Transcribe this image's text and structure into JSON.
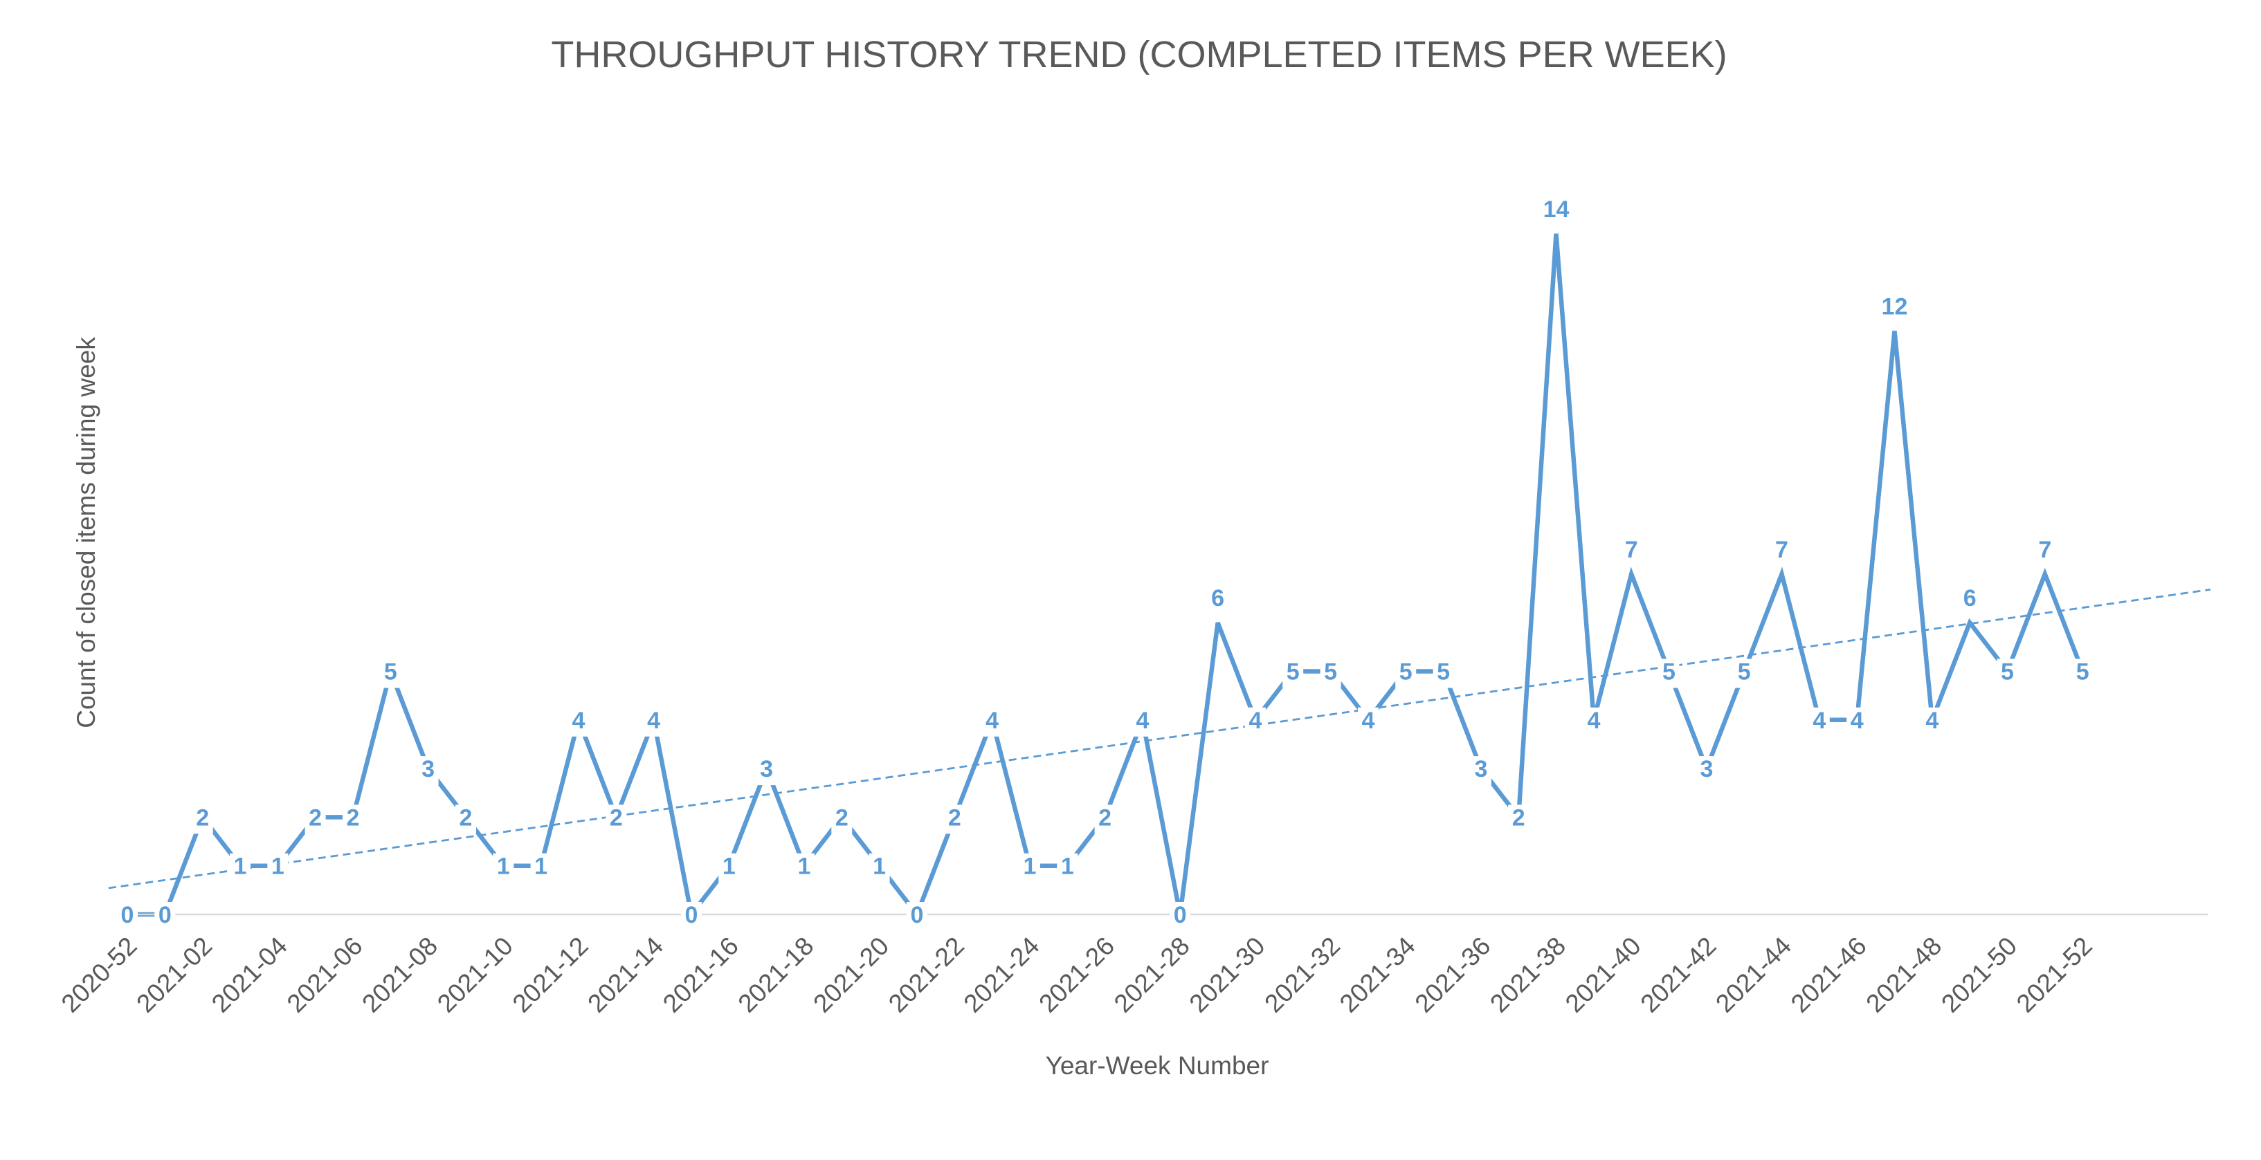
{
  "chart_data": {
    "type": "line",
    "title": "THROUGHPUT  HISTORY TREND (COMPLETED ITEMS PER WEEK)",
    "xlabel": "Year-Week Number",
    "ylabel": "Count of closed items during week",
    "x": [
      "2020-52",
      "2021-01",
      "2021-02",
      "2021-03",
      "2021-04",
      "2021-05",
      "2021-06",
      "2021-07",
      "2021-08",
      "2021-09",
      "2021-10",
      "2021-11",
      "2021-12",
      "2021-13",
      "2021-14",
      "2021-15",
      "2021-16",
      "2021-17",
      "2021-18",
      "2021-19",
      "2021-20",
      "2021-21",
      "2021-22",
      "2021-23",
      "2021-24",
      "2021-25",
      "2021-26",
      "2021-27",
      "2021-28",
      "2021-29",
      "2021-30",
      "2021-31",
      "2021-32",
      "2021-33",
      "2021-34",
      "2021-35",
      "2021-36",
      "2021-37",
      "2021-38",
      "2021-39",
      "2021-40",
      "2021-41",
      "2021-42",
      "2021-43",
      "2021-44",
      "2021-45",
      "2021-46",
      "2021-47",
      "2021-48",
      "2021-49",
      "2021-50",
      "2021-51",
      "2021-52"
    ],
    "tick_labels": [
      "2020-52",
      "2021-02",
      "2021-04",
      "2021-06",
      "2021-08",
      "2021-10",
      "2021-12",
      "2021-14",
      "2021-16",
      "2021-18",
      "2021-20",
      "2021-22",
      "2021-24",
      "2021-26",
      "2021-28",
      "2021-30",
      "2021-32",
      "2021-34",
      "2021-36",
      "2021-38",
      "2021-40",
      "2021-42",
      "2021-44",
      "2021-46",
      "2021-48",
      "2021-50",
      "2021-52"
    ],
    "series": [
      {
        "values": [
          0,
          0,
          2,
          1,
          1,
          2,
          2,
          5,
          3,
          2,
          1,
          1,
          4,
          2,
          4,
          0,
          1,
          3,
          1,
          2,
          1,
          0,
          2,
          4,
          1,
          1,
          2,
          4,
          0,
          6,
          4,
          5,
          5,
          4,
          5,
          5,
          3,
          2,
          14,
          4,
          7,
          5,
          3,
          5,
          7,
          4,
          4,
          12,
          4,
          6,
          5,
          7,
          5
        ],
        "color": "#5b9bd5",
        "data_labels": true
      }
    ],
    "trendline": {
      "type": "linear",
      "style": "dashed",
      "color": "#5b9bd5"
    },
    "ylim": [
      0,
      14
    ],
    "grid": false,
    "legend": "none"
  }
}
